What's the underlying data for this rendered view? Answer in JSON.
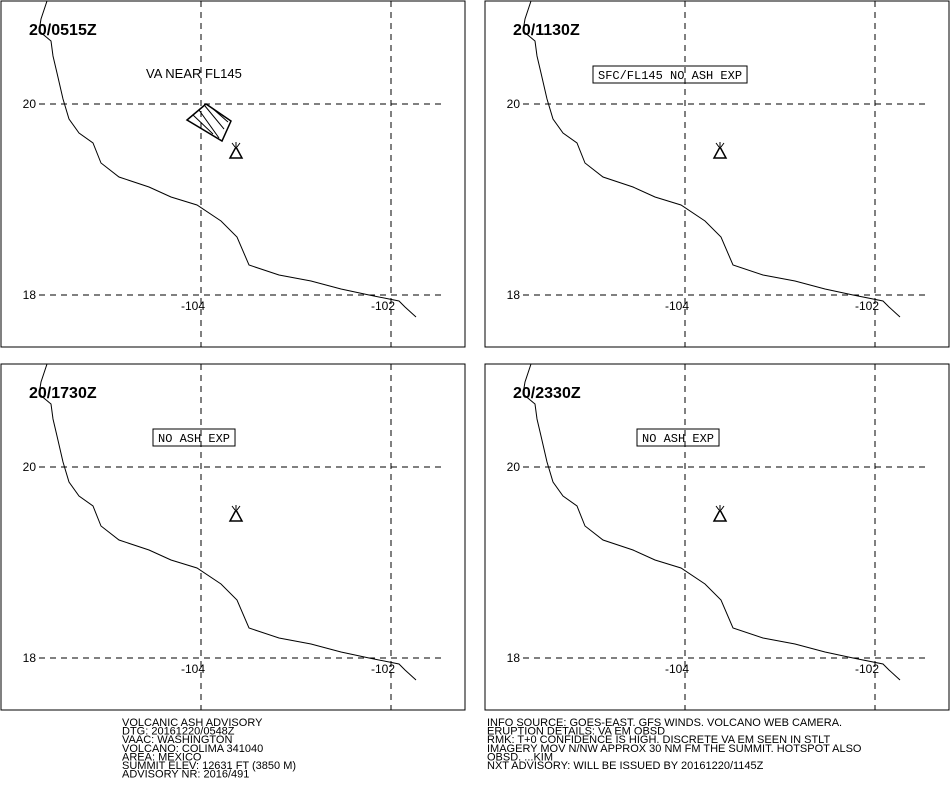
{
  "panels": [
    {
      "time": "20/0515Z",
      "annotation": "VA NEAR FL145",
      "boxed": false
    },
    {
      "time": "20/1130Z",
      "annotation": "SFC/FL145 NO ASH EXP",
      "boxed": true
    },
    {
      "time": "20/1730Z",
      "annotation": "NO ASH EXP",
      "boxed": true
    },
    {
      "time": "20/2330Z",
      "annotation": "NO ASH EXP",
      "boxed": true
    }
  ],
  "grid": {
    "lat": [
      20,
      18
    ],
    "lon": [
      -104,
      -102
    ]
  },
  "advisory": {
    "left": [
      "VOLCANIC ASH ADVISORY",
      "DTG: 20161220/0548Z",
      "VAAC: WASHINGTON",
      "VOLCANO: COLIMA 341040",
      "AREA: MEXICO",
      "SUMMIT ELEV: 12631 FT (3850 M)",
      "ADVISORY NR: 2016/491"
    ],
    "right": [
      "INFO SOURCE: GOES-EAST. GFS WINDS. VOLCANO WEB CAMERA.",
      "ERUPTION DETAILS: VA EM OBSD",
      "RMK: T+0 CONFIDENCE IS HIGH. DISCRETE VA EM SEEN IN STLT",
      "IMAGERY MOV N/NW APPROX 30 NM FM THE SUMMIT. HOTSPOT ALSO",
      "OBSD. ...KIM",
      "NXT ADVISORY: WILL BE ISSUED BY 20161220/1145Z"
    ]
  }
}
